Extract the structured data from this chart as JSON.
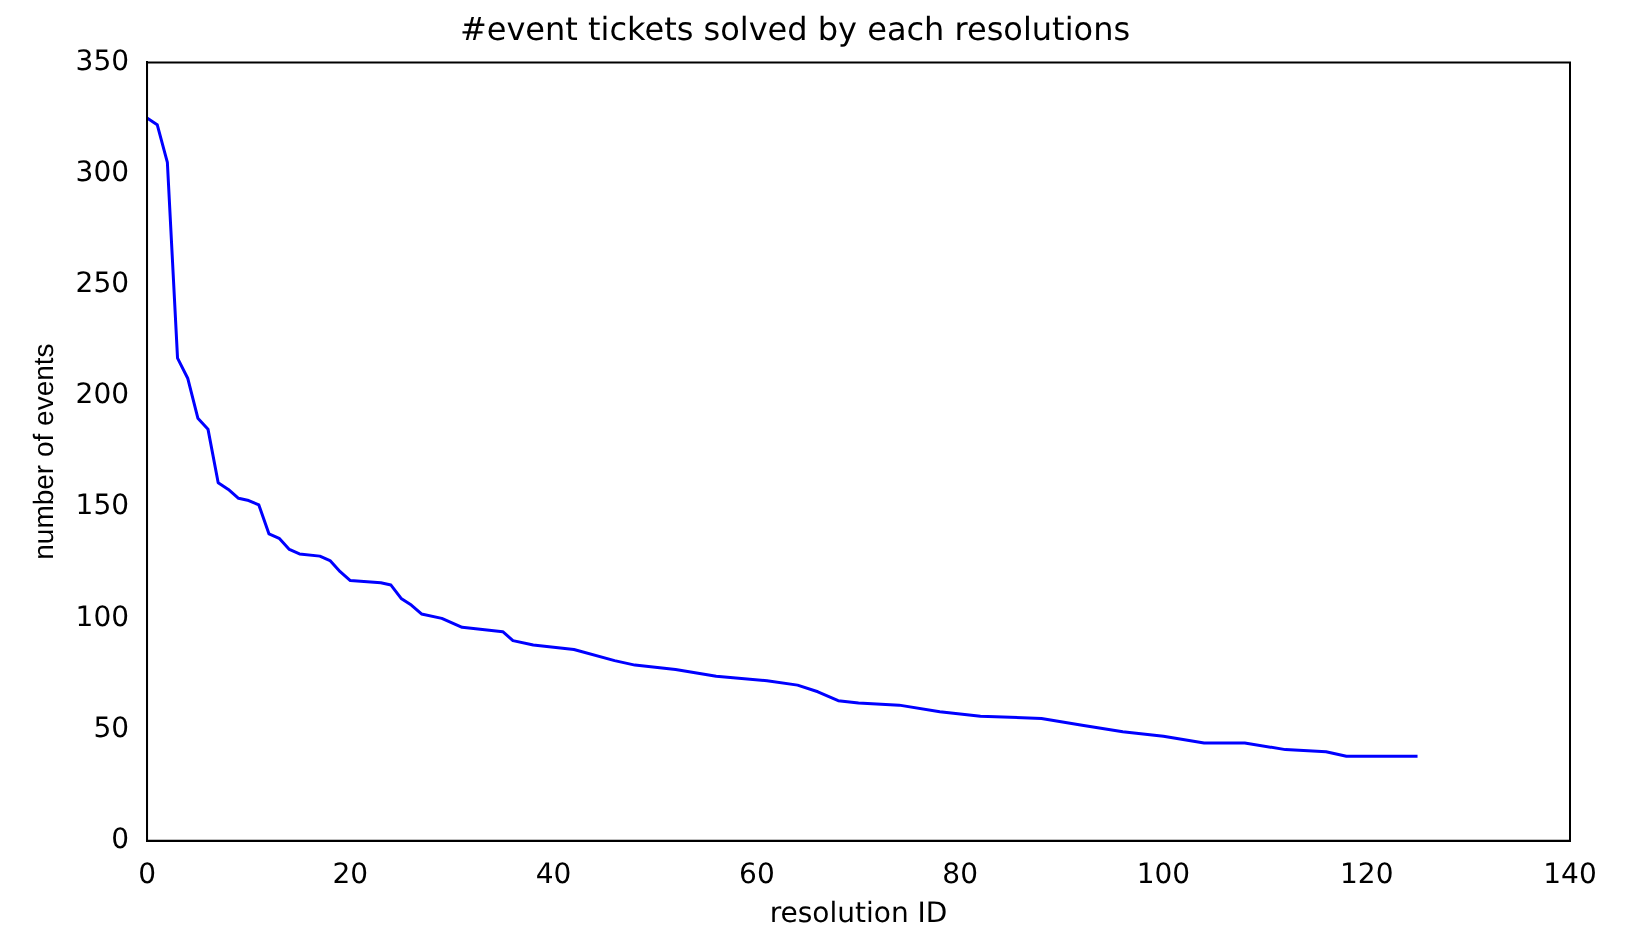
{
  "chart_data": {
    "type": "line",
    "title": "#event tickets solved by each resolutions",
    "xlabel": "resolution ID",
    "ylabel": "number of events",
    "x": [
      0,
      1,
      2,
      3,
      4,
      5,
      6,
      7,
      8,
      9,
      10,
      11,
      12,
      13,
      14,
      15,
      17,
      18,
      19,
      20,
      23,
      24,
      25,
      26,
      27,
      29,
      31,
      35,
      36,
      38,
      42,
      46,
      48,
      52,
      56,
      61,
      64,
      66,
      68,
      70,
      74,
      78,
      82,
      88,
      92,
      96,
      100,
      104,
      108,
      112,
      116,
      118,
      122,
      125
    ],
    "series": [
      {
        "color": "#0000ff",
        "values": [
          325,
          322,
          305,
          217,
          208,
          190,
          185,
          161,
          158,
          154,
          153,
          151,
          138,
          136,
          131,
          129,
          128,
          126,
          121,
          117,
          116,
          115,
          109,
          106,
          102,
          100,
          96,
          94,
          90,
          88,
          86,
          81,
          79,
          77,
          74,
          72,
          70,
          67,
          63,
          62,
          61,
          58,
          56,
          55,
          52,
          49,
          47,
          44,
          44,
          41,
          40,
          38,
          38,
          38
        ]
      }
    ],
    "xlim": [
      0,
      140
    ],
    "xticks": [
      0,
      20,
      40,
      60,
      80,
      100,
      120,
      140
    ],
    "ylim": [
      0,
      350
    ],
    "yticks": [
      0,
      50,
      100,
      150,
      200,
      250,
      300,
      350
    ],
    "grid": false,
    "legend": false,
    "marker": "none",
    "line_style": "solid"
  }
}
